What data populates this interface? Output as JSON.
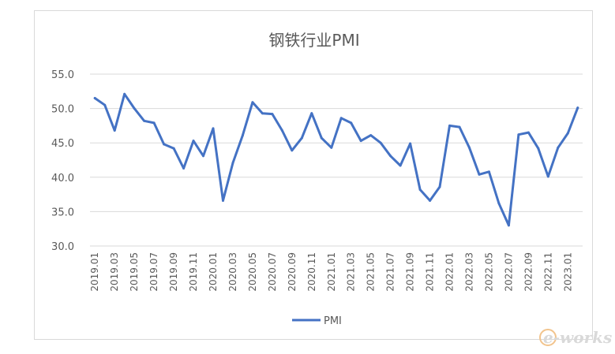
{
  "chart_data": {
    "type": "line",
    "title": "钢铁行业PMI",
    "xlabel": "",
    "ylabel": "",
    "ylim": [
      30.0,
      55.0
    ],
    "y_ticks": [
      "30.0",
      "35.0",
      "40.0",
      "45.0",
      "50.0",
      "55.0"
    ],
    "grid": true,
    "legend": "bottom",
    "series_color": "#4472c4",
    "gridline_color": "#d9d9d9",
    "x": [
      "2019.01",
      "2019.02",
      "2019.03",
      "2019.04",
      "2019.05",
      "2019.06",
      "2019.07",
      "2019.08",
      "2019.09",
      "2019.10",
      "2019.11",
      "2019.12",
      "2020.01",
      "2020.02",
      "2020.03",
      "2020.04",
      "2020.05",
      "2020.06",
      "2020.07",
      "2020.08",
      "2020.09",
      "2020.10",
      "2020.11",
      "2020.12",
      "2021.01",
      "2021.02",
      "2021.03",
      "2021.04",
      "2021.05",
      "2021.06",
      "2021.07",
      "2021.08",
      "2021.09",
      "2021.10",
      "2021.11",
      "2021.12",
      "2022.01",
      "2022.02",
      "2022.03",
      "2022.04",
      "2022.05",
      "2022.06",
      "2022.07",
      "2022.08",
      "2022.09",
      "2022.10",
      "2022.11",
      "2022.12",
      "2023.01",
      "2023.02"
    ],
    "x_tick_labels": [
      "2019.01",
      "2019.03",
      "2019.05",
      "2019.07",
      "2019.09",
      "2019.11",
      "2020.01",
      "2020.03",
      "2020.05",
      "2020.07",
      "2020.09",
      "2020.11",
      "2021.01",
      "2021.03",
      "2021.05",
      "2021.07",
      "2021.09",
      "2021.11",
      "2022.01",
      "2022.03",
      "2022.05",
      "2022.07",
      "2022.09",
      "2022.11",
      "2023.01"
    ],
    "series": [
      {
        "name": "PMI",
        "values": [
          51.5,
          50.5,
          46.8,
          52.1,
          50.0,
          48.2,
          47.9,
          44.8,
          44.2,
          41.3,
          45.3,
          43.1,
          47.1,
          36.6,
          42.1,
          46.1,
          50.9,
          49.3,
          49.2,
          46.8,
          43.9,
          45.7,
          49.3,
          45.7,
          44.3,
          48.6,
          47.9,
          45.3,
          46.1,
          45.0,
          43.1,
          41.7,
          44.9,
          38.2,
          36.6,
          38.6,
          47.5,
          47.3,
          44.3,
          40.4,
          40.8,
          36.2,
          33.0,
          46.2,
          46.5,
          44.2,
          40.1,
          44.3,
          46.4,
          50.1
        ]
      }
    ]
  },
  "watermark": {
    "text": "e-works"
  }
}
